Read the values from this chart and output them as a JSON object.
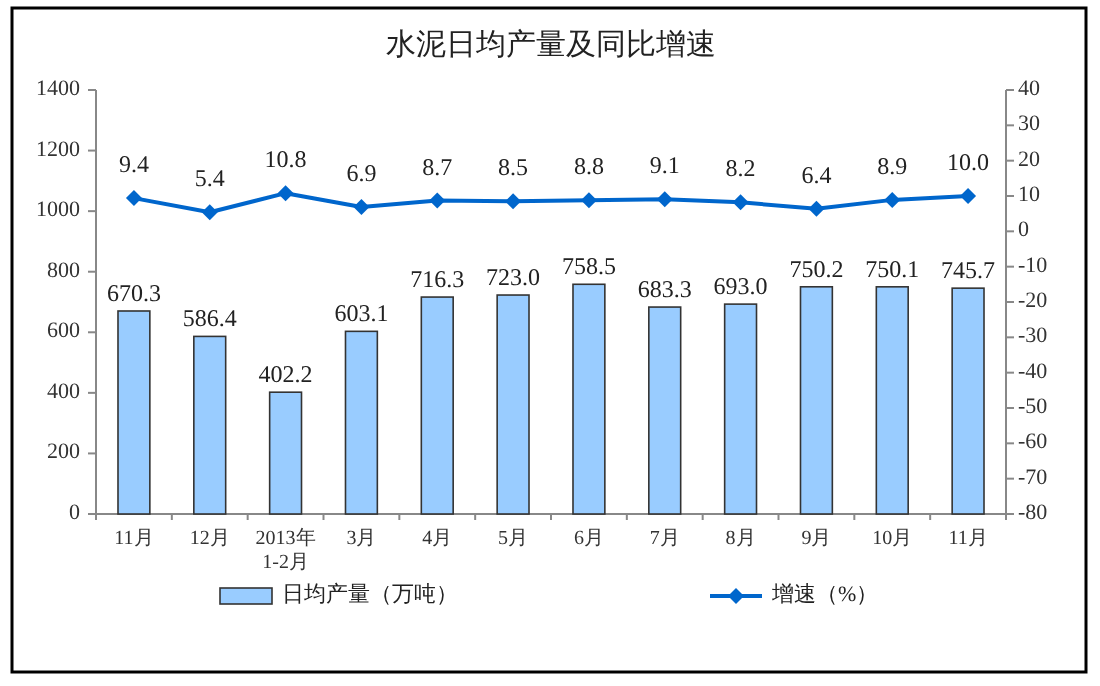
{
  "chart_data": {
    "type": "bar",
    "title": "水泥日均产量及同比增速",
    "categories": [
      "11月",
      "12月",
      "2013年\n1-2月",
      "3月",
      "4月",
      "5月",
      "6月",
      "7月",
      "8月",
      "9月",
      "10月",
      "11月"
    ],
    "series": [
      {
        "name": "日均产量（万吨）",
        "color": "#99ccff",
        "values": [
          670.3,
          586.4,
          402.2,
          603.1,
          716.3,
          723.0,
          758.5,
          683.3,
          693.0,
          750.2,
          750.1,
          745.7
        ],
        "value_labels": [
          "670.3",
          "586.4",
          "402.2",
          "603.1",
          "716.3",
          "723.0",
          "758.5",
          "683.3",
          "693.0",
          "750.2",
          "750.1",
          "745.7"
        ]
      },
      {
        "name": "增速（%）",
        "type": "line",
        "axis": "y2",
        "color": "#0066cc",
        "values": [
          9.4,
          5.4,
          10.8,
          6.9,
          8.7,
          8.5,
          8.8,
          9.1,
          8.2,
          6.4,
          8.9,
          10.0
        ],
        "value_labels": [
          "9.4",
          "5.4",
          "10.8",
          "6.9",
          "8.7",
          "8.5",
          "8.8",
          "9.1",
          "8.2",
          "6.4",
          "8.9",
          "10.0"
        ]
      }
    ],
    "ylim": [
      0,
      1400
    ],
    "yticks": [
      0,
      200,
      400,
      600,
      800,
      1000,
      1200,
      1400
    ],
    "y2lim": [
      -80,
      40
    ],
    "y2ticks": [
      -80,
      -70,
      -60,
      -50,
      -40,
      -30,
      -20,
      -10,
      0,
      10,
      20,
      30,
      40
    ],
    "legend": "bottom",
    "grid": false,
    "marker": "diamond",
    "line_style": "solid"
  }
}
